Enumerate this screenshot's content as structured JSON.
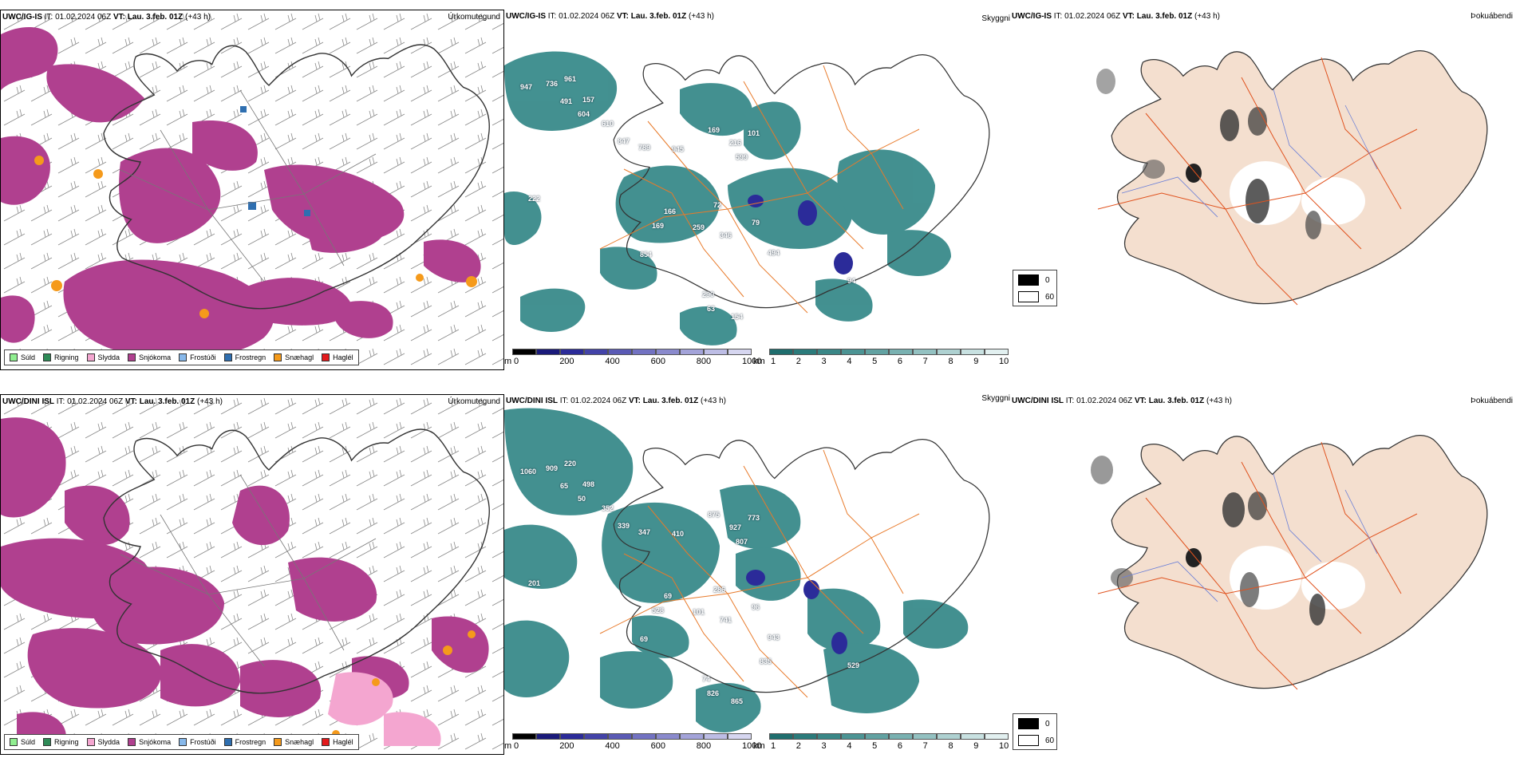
{
  "rows": [
    {
      "id": "igis",
      "precip_title": {
        "model": "UWC/IG-IS",
        "it_label": "IT:",
        "it_value": "01.02.2024 06Z",
        "vt_label": "VT:",
        "vt_value": "Lau. 3.feb. 01Z",
        "lead": "(+43 h)"
      },
      "precip_var": "Úrkomutegund",
      "vis_title": {
        "model": "UWC/IG-IS",
        "it_label": "IT:",
        "it_value": "01.02.2024 06Z",
        "vt_label": "VT:",
        "vt_value": "Lau. 3.feb. 01Z",
        "lead": "(+43 h)"
      },
      "vis_var": "Skyggni",
      "fog_title": {
        "model": "UWC/IG-IS",
        "it_label": "IT:",
        "it_value": "01.02.2024 06Z",
        "vt_label": "VT:",
        "vt_value": "Lau. 3.feb. 01Z",
        "lead": "(+43 h)"
      },
      "fog_var": "Þokuábendi",
      "vis_numbers": [
        "947",
        "736",
        "961",
        "491",
        "157",
        "604",
        "610",
        "847",
        "789",
        "945",
        "169",
        "216",
        "101",
        "599",
        "222",
        "166",
        "72",
        "79",
        "169",
        "259",
        "346",
        "494",
        "854",
        "94",
        "290",
        "63",
        "154"
      ]
    },
    {
      "id": "dini",
      "precip_title": {
        "model": "UWC/DINI ISL",
        "it_label": "IT:",
        "it_value": "01.02.2024 06Z",
        "vt_label": "VT:",
        "vt_value": "Lau. 3.feb. 01Z",
        "lead": "(+43 h)"
      },
      "precip_var": "Úrkomutegund",
      "vis_title": {
        "model": "UWC/DINI ISL",
        "it_label": "IT:",
        "it_value": "01.02.2024 06Z",
        "vt_label": "VT:",
        "vt_value": "Lau. 3.feb. 01Z",
        "lead": "(+43 h)"
      },
      "vis_var": "Skyggni",
      "fog_title": {
        "model": "UWC/DINI ISL",
        "it_label": "IT:",
        "it_value": "01.02.2024 06Z",
        "vt_label": "VT:",
        "vt_value": "Lau. 3.feb. 01Z",
        "lead": "(+43 h)"
      },
      "fog_var": "Þokuábendi",
      "vis_numbers": [
        "1060",
        "909",
        "220",
        "65",
        "498",
        "50",
        "352",
        "339",
        "347",
        "410",
        "875",
        "927",
        "773",
        "807",
        "201",
        "69",
        "286",
        "96",
        "528",
        "101",
        "741",
        "943",
        "69",
        "529",
        "74",
        "826",
        "865",
        "835"
      ]
    }
  ],
  "precip_legend": [
    {
      "label": "Súld",
      "color": "#90ee90"
    },
    {
      "label": "Rigning",
      "color": "#2e8b57"
    },
    {
      "label": "Slydda",
      "color": "#f4a6d0"
    },
    {
      "label": "Snjókoma",
      "color": "#b0408f"
    },
    {
      "label": "Frostúði",
      "color": "#87b8ea"
    },
    {
      "label": "Frostregn",
      "color": "#2f6fb0"
    },
    {
      "label": "Snæhagl",
      "color": "#f59a1b"
    },
    {
      "label": "Haglél",
      "color": "#e31a1c"
    }
  ],
  "vis_colorbar": {
    "height_unit": "m",
    "height_ticks": [
      "0",
      "200",
      "400",
      "600",
      "800",
      "1000"
    ],
    "height_colors": [
      "#000000",
      "#1a1a7a",
      "#2b2b99",
      "#4343a8",
      "#5a5ab5",
      "#7272c2",
      "#8a8acd",
      "#a3a3d9",
      "#bdbde5",
      "#d6d6f0"
    ],
    "dist_unit": "km",
    "dist_ticks": [
      "1",
      "2",
      "3",
      "4",
      "5",
      "6",
      "7",
      "8",
      "9",
      "10"
    ],
    "dist_colors": [
      "#1f6e6e",
      "#2b7b7b",
      "#3a8787",
      "#4c9494",
      "#62a2a2",
      "#79b1b1",
      "#93c1c1",
      "#aed1d1",
      "#c8e1e1",
      "#e2f0f0"
    ]
  },
  "fog_legend": [
    {
      "label": "0",
      "color": "#000000"
    },
    {
      "label": "60",
      "color": "#ffffff"
    }
  ],
  "colors": {
    "snow": "#b0408f",
    "vis_teal": "#2f8585",
    "land_fog": "#f4dfcf",
    "roads": "#e87a2a",
    "rivers": "#6a7fd8"
  }
}
